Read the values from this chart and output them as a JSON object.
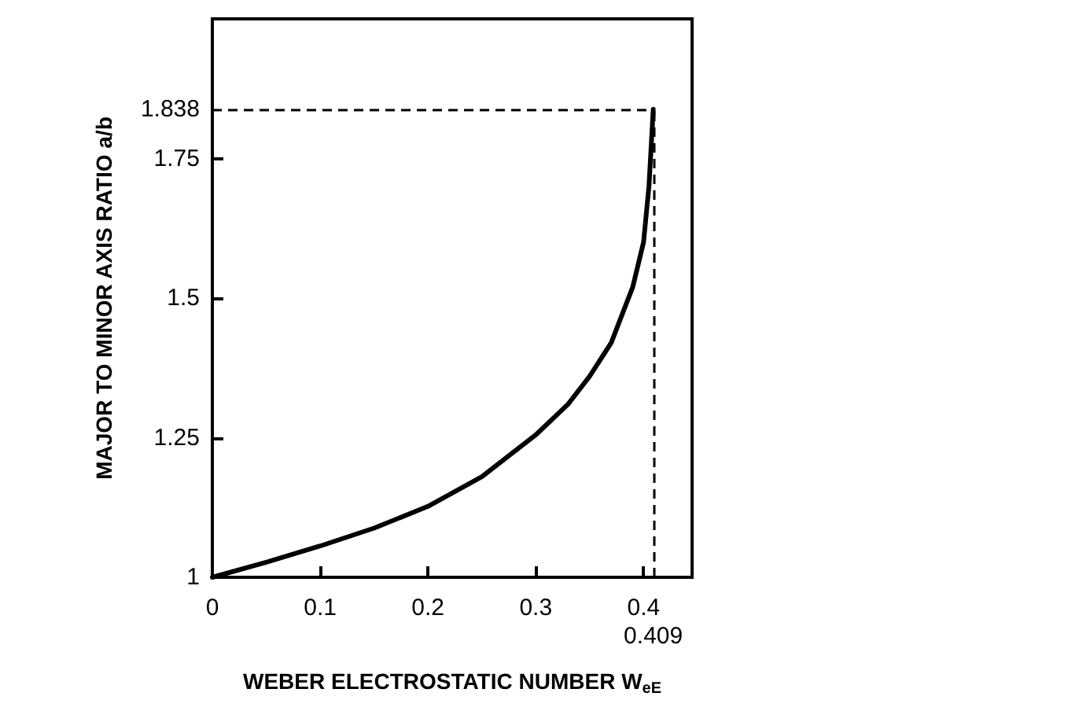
{
  "chart_data": {
    "type": "line",
    "xlabel": "WEBER ELECTROSTATIC NUMBER W$_{eE}$",
    "ylabel": "MAJOR TO MINOR AXIS RATIO a/b",
    "x": [
      0,
      0.05,
      0.1,
      0.15,
      0.2,
      0.25,
      0.3,
      0.33,
      0.35,
      0.37,
      0.38,
      0.39,
      0.4,
      0.405,
      0.409
    ],
    "series": [
      {
        "color": "#000000",
        "values": [
          1,
          1.027,
          1.056,
          1.088,
          1.127,
          1.18,
          1.255,
          1.31,
          1.36,
          1.42,
          1.47,
          1.52,
          1.6,
          1.7,
          1.838
        ]
      }
    ],
    "xlim": [
      0,
      0.445
    ],
    "xticks": [
      0,
      0.1,
      0.2,
      0.3,
      0.4
    ],
    "ylim": [
      1,
      2
    ],
    "yticks": [
      1,
      1.25,
      1.5,
      1.75
    ],
    "ref_lines": [
      {
        "axis": "y",
        "value": 1.838,
        "label": "1.838",
        "color": "#000000",
        "line_style": "dashed"
      },
      {
        "axis": "x",
        "value": 0.409,
        "label": "0.409",
        "color": "#000000",
        "line_style": "dashed"
      }
    ],
    "grid": false,
    "marker": "none",
    "line_style": "solid"
  }
}
